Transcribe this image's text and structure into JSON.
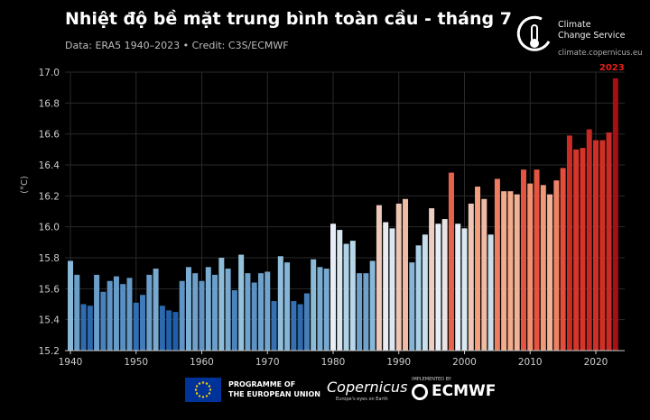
{
  "header": {
    "title": "Nhiệt độ bề mặt trung bình toàn cầu - tháng 7",
    "subtitle": "Data: ERA5 1940–2023 • Credit: C3S/ECMWF"
  },
  "logo": {
    "line1": "Climate",
    "line2": "Change Service",
    "url": "climate.copernicus.eu"
  },
  "footer": {
    "eu_line1": "PROGRAMME OF",
    "eu_line2": "THE EUROPEAN UNION",
    "copernicus": "Copernicus",
    "copernicus_tag": "Europe's eyes on Earth",
    "implemented": "IMPLEMENTED BY",
    "ecmwf": "ECMWF"
  },
  "chart_data": {
    "type": "bar",
    "title": "Nhiệt độ bề mặt trung bình toàn cầu - tháng 7",
    "ylabel": "(°C)",
    "ylim": [
      15.2,
      17.0
    ],
    "yticks": [
      "15.2",
      "15.4",
      "15.6",
      "15.8",
      "16.0",
      "16.2",
      "16.4",
      "16.6",
      "16.8",
      "17.0"
    ],
    "xticks": [
      "1940",
      "1950",
      "1960",
      "1970",
      "1980",
      "1990",
      "2000",
      "2010",
      "2020"
    ],
    "grid": true,
    "annotation": "2023",
    "color_scale": {
      "cold": "#1f5ea8",
      "neutral": "#e8eef5",
      "warm": "#f4a582",
      "hot": "#a50f15"
    },
    "x": [
      1940,
      1941,
      1942,
      1943,
      1944,
      1945,
      1946,
      1947,
      1948,
      1949,
      1950,
      1951,
      1952,
      1953,
      1954,
      1955,
      1956,
      1957,
      1958,
      1959,
      1960,
      1961,
      1962,
      1963,
      1964,
      1965,
      1966,
      1967,
      1968,
      1969,
      1970,
      1971,
      1972,
      1973,
      1974,
      1975,
      1976,
      1977,
      1978,
      1979,
      1980,
      1981,
      1982,
      1983,
      1984,
      1985,
      1986,
      1987,
      1988,
      1989,
      1990,
      1991,
      1992,
      1993,
      1994,
      1995,
      1996,
      1997,
      1998,
      1999,
      2000,
      2001,
      2002,
      2003,
      2004,
      2005,
      2006,
      2007,
      2008,
      2009,
      2010,
      2011,
      2012,
      2013,
      2014,
      2015,
      2016,
      2017,
      2018,
      2019,
      2020,
      2021,
      2022,
      2023
    ],
    "values": [
      15.78,
      15.69,
      15.5,
      15.49,
      15.69,
      15.58,
      15.65,
      15.68,
      15.63,
      15.67,
      15.51,
      15.56,
      15.69,
      15.73,
      15.49,
      15.46,
      15.45,
      15.65,
      15.74,
      15.7,
      15.65,
      15.74,
      15.69,
      15.8,
      15.73,
      15.59,
      15.82,
      15.7,
      15.64,
      15.7,
      15.71,
      15.52,
      15.81,
      15.77,
      15.52,
      15.5,
      15.57,
      15.79,
      15.74,
      15.73,
      16.02,
      15.98,
      15.89,
      15.91,
      15.7,
      15.7,
      15.78,
      16.14,
      16.03,
      15.99,
      16.15,
      16.18,
      15.77,
      15.88,
      15.95,
      16.12,
      16.02,
      16.05,
      16.35,
      16.02,
      15.99,
      16.15,
      16.26,
      16.18,
      15.95,
      16.31,
      16.23,
      16.23,
      16.21,
      16.37,
      16.28,
      16.37,
      16.27,
      16.21,
      16.3,
      16.38,
      16.59,
      16.5,
      16.51,
      16.63,
      16.56,
      16.56,
      16.61,
      16.96
    ]
  }
}
